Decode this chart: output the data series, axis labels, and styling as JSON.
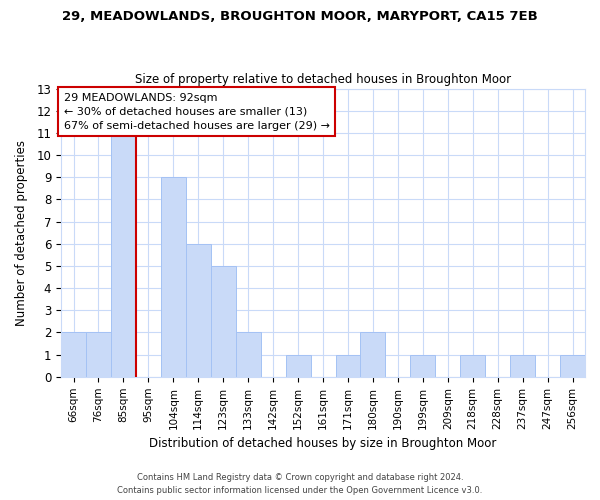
{
  "title1": "29, MEADOWLANDS, BROUGHTON MOOR, MARYPORT, CA15 7EB",
  "title2": "Size of property relative to detached houses in Broughton Moor",
  "xlabel": "Distribution of detached houses by size in Broughton Moor",
  "ylabel": "Number of detached properties",
  "bar_labels": [
    "66sqm",
    "76sqm",
    "85sqm",
    "95sqm",
    "104sqm",
    "114sqm",
    "123sqm",
    "133sqm",
    "142sqm",
    "152sqm",
    "161sqm",
    "171sqm",
    "180sqm",
    "190sqm",
    "199sqm",
    "209sqm",
    "218sqm",
    "228sqm",
    "237sqm",
    "247sqm",
    "256sqm"
  ],
  "bar_values": [
    2,
    2,
    11,
    0,
    9,
    6,
    5,
    2,
    0,
    1,
    0,
    1,
    2,
    0,
    1,
    0,
    1,
    0,
    1,
    0,
    1
  ],
  "bar_color": "#c9daf8",
  "bar_edgecolor": "#a4c2f4",
  "reference_line_x": 2.5,
  "reference_line_color": "#cc0000",
  "ylim": [
    0,
    13
  ],
  "yticks": [
    0,
    1,
    2,
    3,
    4,
    5,
    6,
    7,
    8,
    9,
    10,
    11,
    12,
    13
  ],
  "annotation_title": "29 MEADOWLANDS: 92sqm",
  "annotation_line1": "← 30% of detached houses are smaller (13)",
  "annotation_line2": "67% of semi-detached houses are larger (29) →",
  "footer1": "Contains HM Land Registry data © Crown copyright and database right 2024.",
  "footer2": "Contains public sector information licensed under the Open Government Licence v3.0.",
  "background_color": "#ffffff",
  "grid_color": "#c9daf8"
}
